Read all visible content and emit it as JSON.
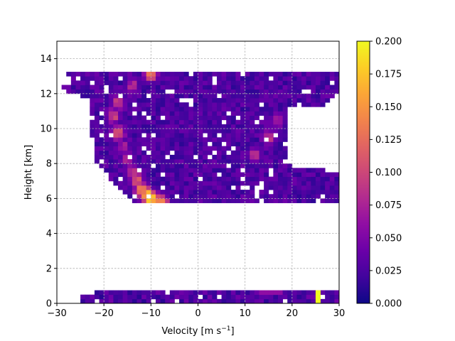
{
  "chart_data": {
    "type": "heatmap",
    "xlabel": "Velocity [m s",
    "xlabel_sup": "−1",
    "xlabel_close": "]",
    "ylabel": "Height [km]",
    "xlim": [
      -30,
      30
    ],
    "ylim": [
      0,
      15
    ],
    "xticks": [
      -30,
      -20,
      -10,
      0,
      10,
      20,
      30
    ],
    "xtick_labels": [
      "−30",
      "−20",
      "−10",
      "0",
      "10",
      "20",
      "30"
    ],
    "yticks": [
      0,
      2,
      4,
      6,
      8,
      10,
      12,
      14
    ],
    "ytick_labels": [
      "0",
      "2",
      "4",
      "6",
      "8",
      "10",
      "12",
      "14"
    ],
    "grid": true,
    "colormap": "plasma",
    "colorbar": {
      "range": [
        0.0,
        0.2
      ],
      "ticks": [
        0.0,
        0.025,
        0.05,
        0.075,
        0.1,
        0.125,
        0.15,
        0.175,
        0.2
      ],
      "tick_labels": [
        "0.000",
        "0.025",
        "0.050",
        "0.075",
        "0.100",
        "0.125",
        "0.150",
        "0.175",
        "0.200"
      ]
    },
    "bin_width_x": 1,
    "bin_height_y": 0.25,
    "upper_region_rows": [
      {
        "y": 13.25,
        "x": [
          -28,
          30
        ]
      },
      {
        "y": 13.0,
        "x": [
          -28,
          30
        ]
      },
      {
        "y": 12.75,
        "x": [
          -25,
          30
        ]
      },
      {
        "y": 12.5,
        "x": [
          -29,
          30
        ]
      },
      {
        "y": 12.25,
        "x": [
          -29,
          30
        ]
      },
      {
        "y": 12.0,
        "x": [
          -26,
          30
        ]
      },
      {
        "y": 11.75,
        "x": [
          -23,
          28
        ]
      },
      {
        "y": 11.5,
        "x": [
          -23,
          27
        ]
      },
      {
        "y": 11.0,
        "x": [
          -23,
          25
        ]
      },
      {
        "y": 10.5,
        "x": [
          -22,
          24
        ]
      },
      {
        "y": 10.0,
        "x": [
          -23,
          23
        ]
      },
      {
        "y": 9.5,
        "x": [
          -22,
          21
        ]
      },
      {
        "y": 9.0,
        "x": [
          -22,
          19
        ]
      },
      {
        "y": 8.5,
        "x": [
          -22,
          19
        ]
      },
      {
        "y": 8.0,
        "x": [
          -21,
          17
        ]
      },
      {
        "y": 7.5,
        "x": [
          -19,
          30
        ]
      },
      {
        "y": 7.0,
        "x": [
          -18,
          30
        ]
      },
      {
        "y": 6.5,
        "x": [
          -16,
          30
        ]
      },
      {
        "y": 6.0,
        "x": [
          -14,
          30
        ]
      },
      {
        "y": 5.75,
        "x": [
          -13,
          30
        ]
      }
    ],
    "upper_ridge": [
      {
        "y": 13.25,
        "x": -10,
        "v": 0.18
      },
      {
        "y": 12.5,
        "x": -14,
        "v": 0.09
      },
      {
        "y": 11.5,
        "x": -17,
        "v": 0.1
      },
      {
        "y": 10.75,
        "x": -18,
        "v": 0.11
      },
      {
        "y": 9.75,
        "x": -17,
        "v": 0.14
      },
      {
        "y": 9.0,
        "x": -16,
        "v": 0.08
      },
      {
        "y": 8.25,
        "x": -15,
        "v": 0.09
      },
      {
        "y": 7.5,
        "x": -14,
        "v": 0.11
      },
      {
        "y": 7.0,
        "x": -13,
        "v": 0.13
      },
      {
        "y": 6.5,
        "x": -12,
        "v": 0.17
      },
      {
        "y": 6.25,
        "x": -11,
        "v": 0.19
      },
      {
        "y": 6.0,
        "x": -10,
        "v": 0.2
      },
      {
        "y": 5.75,
        "x": -8,
        "v": 0.2
      },
      {
        "y": 9.5,
        "x": 15,
        "v": 0.11
      },
      {
        "y": 10.5,
        "x": 17,
        "v": 0.09
      },
      {
        "y": 8.5,
        "x": 12,
        "v": 0.09
      }
    ],
    "lower_band": {
      "y": [
        0,
        0.75
      ],
      "x": [
        -25,
        30
      ]
    },
    "lower_hotspot": {
      "x": 25.5,
      "y": [
        0,
        0.75
      ],
      "v": 0.2
    }
  }
}
